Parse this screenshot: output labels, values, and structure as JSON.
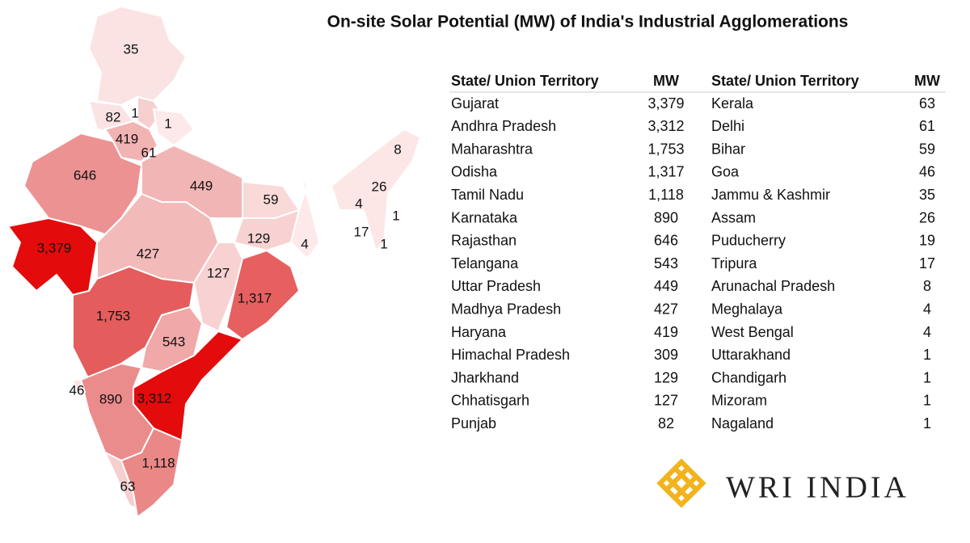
{
  "title": "On-site Solar Potential (MW) of India's Industrial Agglomerations",
  "table": {
    "headers": [
      "State/ Union Territory",
      "MW",
      "State/ Union Territory",
      "MW"
    ],
    "rows": [
      [
        "Gujarat",
        "3,379",
        "Kerala",
        "63"
      ],
      [
        "Andhra Pradesh",
        "3,312",
        "Delhi",
        "61"
      ],
      [
        "Maharashtra",
        "1,753",
        "Bihar",
        "59"
      ],
      [
        "Odisha",
        "1,317",
        "Goa",
        "46"
      ],
      [
        "Tamil Nadu",
        "1,118",
        "Jammu & Kashmir",
        "35"
      ],
      [
        "Karnataka",
        "890",
        "Assam",
        "26"
      ],
      [
        "Rajasthan",
        "646",
        "Puducherry",
        "19"
      ],
      [
        "Telangana",
        "543",
        "Tripura",
        "17"
      ],
      [
        "Uttar Pradesh",
        "449",
        "Arunachal Pradesh",
        "8"
      ],
      [
        "Madhya Pradesh",
        "427",
        "Meghalaya",
        "4"
      ],
      [
        "Haryana",
        "419",
        "West Bengal",
        "4"
      ],
      [
        "Himachal Pradesh",
        "309",
        "Uttarakhand",
        "1"
      ],
      [
        "Jharkhand",
        "129",
        "Chandigarh",
        "1"
      ],
      [
        "Chhatisgarh",
        "127",
        "Mizoram",
        "1"
      ],
      [
        "Punjab",
        "82",
        "Nagaland",
        "1"
      ]
    ]
  },
  "map": {
    "labels": [
      "35",
      "82",
      "1",
      "1",
      "419",
      "61",
      "646",
      "449",
      "59",
      "8",
      "26",
      "4",
      "1",
      "17",
      "1",
      "129",
      "4",
      "3,379",
      "427",
      "127",
      "1,317",
      "1,753",
      "543",
      "46",
      "890",
      "3,312",
      "1,118",
      "63"
    ]
  },
  "logo": {
    "text": "WRI INDIA"
  }
}
